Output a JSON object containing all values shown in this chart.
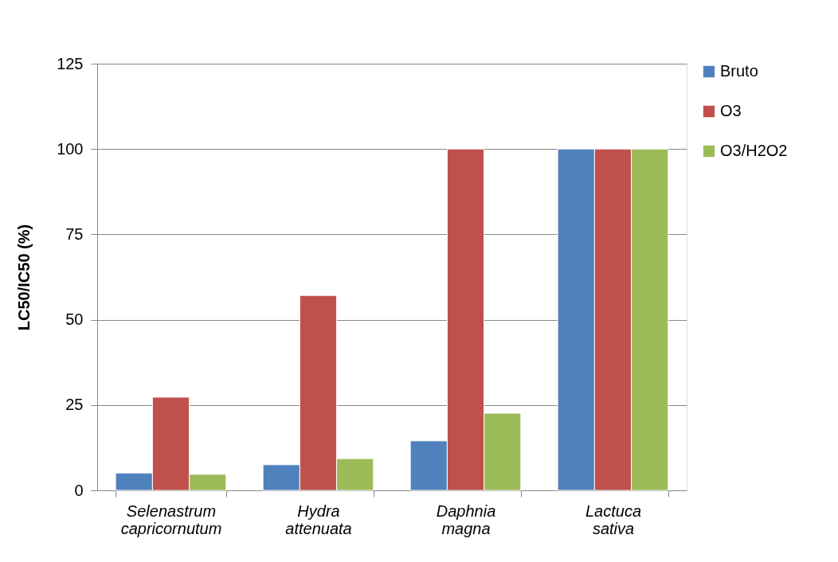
{
  "chart_data": {
    "type": "bar",
    "ylabel": "LC50/IC50 (%)",
    "categories": [
      "Selenastrum capricornutum",
      "Hydra attenuata",
      "Daphnia magna",
      "Lactuca sativa"
    ],
    "series": [
      {
        "name": "Bruto",
        "color": "#4f81bd",
        "values": [
          5.1,
          7.5,
          14.5,
          100
        ]
      },
      {
        "name": "O3",
        "color": "#c0504d",
        "values": [
          27.3,
          57.1,
          100,
          100
        ]
      },
      {
        "name": "O3/H2O2",
        "color": "#9bbb59",
        "values": [
          4.7,
          9.3,
          22.6,
          100
        ]
      }
    ],
    "ylim": [
      0,
      125
    ],
    "yticks": [
      0,
      25,
      50,
      75,
      100,
      125
    ],
    "grid": "y",
    "legend": "right"
  }
}
